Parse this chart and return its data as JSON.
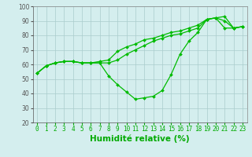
{
  "title": "",
  "xlabel": "Humidité relative (%)",
  "ylabel": "",
  "background_color": "#d4eeee",
  "grid_color": "#aacccc",
  "line_color": "#00bb00",
  "x": [
    0,
    1,
    2,
    3,
    4,
    5,
    6,
    7,
    8,
    9,
    10,
    11,
    12,
    13,
    14,
    15,
    16,
    17,
    18,
    19,
    20,
    21,
    22,
    23
  ],
  "y_max": [
    54,
    59,
    61,
    62,
    62,
    61,
    61,
    62,
    63,
    69,
    72,
    74,
    77,
    78,
    80,
    82,
    83,
    85,
    87,
    91,
    92,
    93,
    85,
    86
  ],
  "y_min": [
    54,
    59,
    61,
    62,
    62,
    61,
    61,
    61,
    52,
    46,
    41,
    36,
    37,
    38,
    42,
    53,
    67,
    76,
    82,
    91,
    92,
    85,
    85,
    86
  ],
  "y_avg": [
    54,
    59,
    61,
    62,
    62,
    61,
    61,
    61,
    61,
    63,
    67,
    70,
    73,
    76,
    78,
    80,
    81,
    83,
    85,
    91,
    92,
    90,
    85,
    86
  ],
  "ylim": [
    20,
    100
  ],
  "xlim": [
    -0.5,
    23.5
  ],
  "yticks": [
    20,
    30,
    40,
    50,
    60,
    70,
    80,
    90,
    100
  ],
  "xticks": [
    0,
    1,
    2,
    3,
    4,
    5,
    6,
    7,
    8,
    9,
    10,
    11,
    12,
    13,
    14,
    15,
    16,
    17,
    18,
    19,
    20,
    21,
    22,
    23
  ],
  "tick_fontsize": 5.5,
  "xlabel_fontsize": 7.5,
  "marker": "D",
  "markersize": 2.0,
  "linewidth": 0.9
}
